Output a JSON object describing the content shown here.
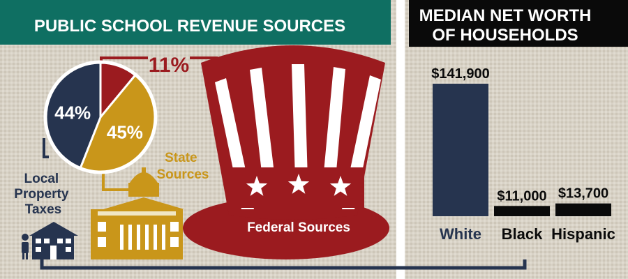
{
  "colors": {
    "navy": "#26344f",
    "red": "#9b1b1f",
    "gold": "#c9961a",
    "teal": "#0f6f62",
    "black": "#0a0a0a",
    "beige": "#d8d2c6",
    "white": "#ffffff"
  },
  "left_panel": {
    "title": "PUBLIC SCHOOL REVENUE SOURCES",
    "labels": {
      "local": "Local Property Taxes",
      "state": "State Sources",
      "federal": "Federal Sources"
    },
    "icons": [
      "person-icon",
      "house-icon",
      "capitol-building-icon",
      "uncle-sam-hat-icon",
      "star-icon"
    ]
  },
  "right_panel": {
    "title_line1": "MEDIAN NET WORTH",
    "title_line2": "OF HOUSEHOLDS"
  },
  "chart_data": [
    {
      "type": "pie",
      "title": "PUBLIC SCHOOL REVENUE SOURCES",
      "slices": [
        {
          "name": "Federal Sources",
          "value": 11,
          "label": "11%",
          "color": "#9b1b1f"
        },
        {
          "name": "State Sources",
          "value": 45,
          "label": "45%",
          "color": "#c9961a"
        },
        {
          "name": "Local Property Taxes",
          "value": 44,
          "label": "44%",
          "color": "#26344f"
        }
      ]
    },
    {
      "type": "bar",
      "title": "MEDIAN NET WORTH OF HOUSEHOLDS",
      "categories": [
        "White",
        "Black",
        "Hispanic"
      ],
      "values": [
        141900,
        11000,
        13700
      ],
      "value_labels": [
        "$141,900",
        "$11,000",
        "$13,700"
      ],
      "bar_colors": [
        "#26344f",
        "#0a0a0a",
        "#0a0a0a"
      ],
      "ylim": [
        0,
        141900
      ]
    }
  ]
}
